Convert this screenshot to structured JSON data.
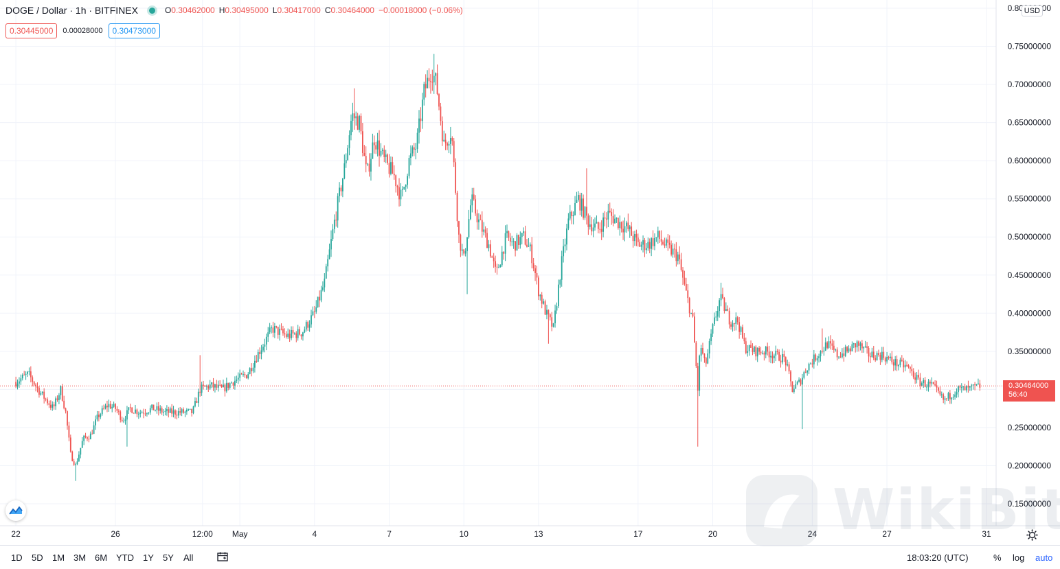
{
  "header": {
    "symbol": "DOGE / Dollar · 1h · BITFINEX",
    "open_label": "O",
    "open": "0.30462000",
    "high_label": "H",
    "high": "0.30495000",
    "low_label": "L",
    "low": "0.30417000",
    "close_label": "C",
    "close": "0.30464000",
    "change": "−0.00018000 (−0.06%)",
    "status_color": "#26a69a"
  },
  "quotes": {
    "bid": "0.30445000",
    "spread": "0.00028000",
    "ask": "0.30473000"
  },
  "currency_badge": "USD",
  "last_price": {
    "value": "0.30464000",
    "countdown": "56:40",
    "color": "#ef5350"
  },
  "colors": {
    "up": "#26a69a",
    "down": "#ef5350",
    "grid": "#f0f3fa",
    "accent": "#2962ff"
  },
  "bottom_bar": {
    "ranges": [
      "1D",
      "5D",
      "1M",
      "3M",
      "6M",
      "YTD",
      "1Y",
      "5Y",
      "All"
    ],
    "icons": [
      "calendar-icon",
      "gear-icon"
    ],
    "clock": "18:03:20 (UTC)",
    "percent_label": "%",
    "log_label": "log",
    "auto_label": "auto"
  },
  "watermark": "WikiBit",
  "chart_data": {
    "type": "candlestick",
    "title": "DOGE / Dollar · 1h · BITFINEX",
    "ylim": [
      0.1,
      0.8
    ],
    "y_ticks": [
      {
        "value": 0.8,
        "label": "0.80000000"
      },
      {
        "value": 0.75,
        "label": "0.75000000"
      },
      {
        "value": 0.7,
        "label": "0.70000000"
      },
      {
        "value": 0.65,
        "label": "0.65000000"
      },
      {
        "value": 0.6,
        "label": "0.60000000"
      },
      {
        "value": 0.55,
        "label": "0.55000000"
      },
      {
        "value": 0.5,
        "label": "0.50000000"
      },
      {
        "value": 0.45,
        "label": "0.45000000"
      },
      {
        "value": 0.4,
        "label": "0.40000000"
      },
      {
        "value": 0.35,
        "label": "0.35000000"
      },
      {
        "value": 0.3,
        "label": ""
      },
      {
        "value": 0.25,
        "label": "0.25000000"
      },
      {
        "value": 0.2,
        "label": "0.20000000"
      },
      {
        "value": 0.15,
        "label": "0.15000000"
      }
    ],
    "x_ticks": [
      "22",
      "26",
      "12:00",
      "May",
      "4",
      "7",
      "10",
      "13",
      "17",
      "20",
      "24",
      "27",
      "31"
    ],
    "x_tick_days": [
      0,
      4,
      7.5,
      9,
      12,
      15,
      18,
      21,
      25,
      28,
      32,
      35,
      39
    ],
    "x_range_days": [
      -0.5,
      39
    ],
    "last_price": 0.30464,
    "close_path": [
      [
        0,
        0.31
      ],
      [
        0.5,
        0.32
      ],
      [
        1.0,
        0.295
      ],
      [
        1.5,
        0.275
      ],
      [
        1.8,
        0.3
      ],
      [
        2.0,
        0.27
      ],
      [
        2.2,
        0.215
      ],
      [
        2.4,
        0.2
      ],
      [
        2.7,
        0.235
      ],
      [
        3.0,
        0.24
      ],
      [
        3.3,
        0.265
      ],
      [
        3.7,
        0.28
      ],
      [
        4.0,
        0.275
      ],
      [
        4.3,
        0.26
      ],
      [
        4.6,
        0.275
      ],
      [
        5.0,
        0.27
      ],
      [
        5.5,
        0.275
      ],
      [
        6.0,
        0.27
      ],
      [
        6.6,
        0.27
      ],
      [
        7.1,
        0.27
      ],
      [
        7.4,
        0.3
      ],
      [
        7.8,
        0.305
      ],
      [
        8.3,
        0.3
      ],
      [
        8.7,
        0.31
      ],
      [
        9.3,
        0.32
      ],
      [
        9.7,
        0.345
      ],
      [
        10.3,
        0.38
      ],
      [
        10.9,
        0.37
      ],
      [
        11.5,
        0.375
      ],
      [
        12.0,
        0.4
      ],
      [
        12.4,
        0.44
      ],
      [
        12.8,
        0.52
      ],
      [
        13.2,
        0.59
      ],
      [
        13.5,
        0.66
      ],
      [
        13.8,
        0.65
      ],
      [
        14.1,
        0.58
      ],
      [
        14.4,
        0.63
      ],
      [
        14.8,
        0.6
      ],
      [
        15.2,
        0.58
      ],
      [
        15.5,
        0.55
      ],
      [
        15.8,
        0.6
      ],
      [
        16.1,
        0.62
      ],
      [
        16.4,
        0.69
      ],
      [
        16.7,
        0.72
      ],
      [
        16.9,
        0.7
      ],
      [
        17.2,
        0.62
      ],
      [
        17.5,
        0.64
      ],
      [
        17.8,
        0.5
      ],
      [
        18.0,
        0.47
      ],
      [
        18.3,
        0.55
      ],
      [
        18.6,
        0.52
      ],
      [
        19.0,
        0.49
      ],
      [
        19.3,
        0.45
      ],
      [
        19.7,
        0.5
      ],
      [
        20.0,
        0.49
      ],
      [
        20.4,
        0.5
      ],
      [
        20.7,
        0.48
      ],
      [
        21.0,
        0.43
      ],
      [
        21.3,
        0.4
      ],
      [
        21.6,
        0.38
      ],
      [
        21.9,
        0.46
      ],
      [
        22.2,
        0.52
      ],
      [
        22.6,
        0.55
      ],
      [
        23.0,
        0.52
      ],
      [
        23.4,
        0.51
      ],
      [
        23.8,
        0.53
      ],
      [
        24.2,
        0.52
      ],
      [
        24.6,
        0.51
      ],
      [
        25.0,
        0.49
      ],
      [
        25.4,
        0.49
      ],
      [
        25.8,
        0.5
      ],
      [
        26.2,
        0.485
      ],
      [
        26.6,
        0.475
      ],
      [
        26.9,
        0.43
      ],
      [
        27.2,
        0.39
      ],
      [
        27.4,
        0.3
      ],
      [
        27.5,
        0.36
      ],
      [
        27.7,
        0.33
      ],
      [
        28.0,
        0.38
      ],
      [
        28.3,
        0.42
      ],
      [
        28.7,
        0.39
      ],
      [
        29.0,
        0.39
      ],
      [
        29.3,
        0.355
      ],
      [
        29.7,
        0.35
      ],
      [
        30.1,
        0.35
      ],
      [
        30.5,
        0.345
      ],
      [
        30.9,
        0.34
      ],
      [
        31.2,
        0.3
      ],
      [
        31.5,
        0.31
      ],
      [
        31.8,
        0.33
      ],
      [
        32.2,
        0.345
      ],
      [
        32.6,
        0.36
      ],
      [
        33.0,
        0.345
      ],
      [
        33.4,
        0.35
      ],
      [
        33.8,
        0.36
      ],
      [
        34.3,
        0.345
      ],
      [
        34.8,
        0.345
      ],
      [
        35.3,
        0.335
      ],
      [
        35.8,
        0.33
      ],
      [
        36.3,
        0.31
      ],
      [
        36.8,
        0.305
      ],
      [
        37.3,
        0.285
      ],
      [
        37.8,
        0.3
      ],
      [
        38.3,
        0.3
      ],
      [
        38.8,
        0.305
      ]
    ],
    "spikes": [
      {
        "day": 2.4,
        "low": 0.18
      },
      {
        "day": 4.5,
        "low": 0.225
      },
      {
        "day": 7.4,
        "high": 0.345
      },
      {
        "day": 13.6,
        "high": 0.695
      },
      {
        "day": 16.8,
        "high": 0.74
      },
      {
        "day": 18.1,
        "low": 0.425
      },
      {
        "day": 21.4,
        "low": 0.36
      },
      {
        "day": 22.9,
        "high": 0.59
      },
      {
        "day": 27.4,
        "low": 0.225
      },
      {
        "day": 28.3,
        "high": 0.44
      },
      {
        "day": 31.6,
        "low": 0.248
      },
      {
        "day": 32.4,
        "high": 0.38
      }
    ]
  }
}
